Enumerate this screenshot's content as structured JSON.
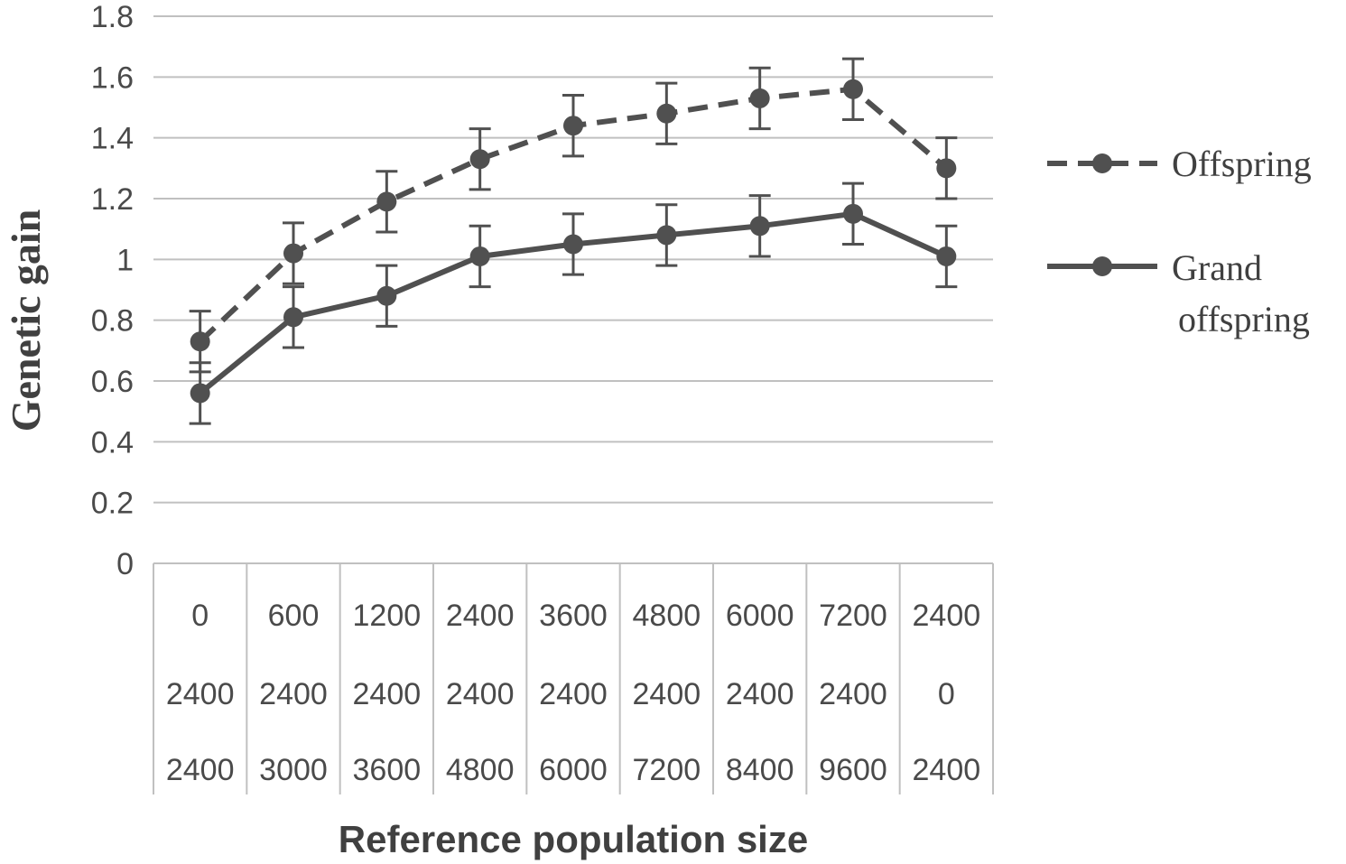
{
  "chart_data": {
    "type": "line",
    "title": "",
    "xlabel": "Reference population size",
    "ylabel": "Genetic gain",
    "ylim": [
      0,
      1.8
    ],
    "yticks": [
      "0",
      "0.2",
      "0.4",
      "0.6",
      "0.8",
      "1",
      "1.2",
      "1.4",
      "1.6",
      "1.8"
    ],
    "grid": true,
    "legend_position": "right",
    "categories": [
      [
        "0",
        "2400",
        "2400"
      ],
      [
        "600",
        "2400",
        "3000"
      ],
      [
        "1200",
        "2400",
        "3600"
      ],
      [
        "2400",
        "2400",
        "4800"
      ],
      [
        "3600",
        "2400",
        "6000"
      ],
      [
        "4800",
        "2400",
        "7200"
      ],
      [
        "6000",
        "2400",
        "8400"
      ],
      [
        "7200",
        "2400",
        "9600"
      ],
      [
        "2400",
        "0",
        "2400"
      ]
    ],
    "series": [
      {
        "name": "Offspring",
        "style": "dashed",
        "values": [
          0.73,
          1.02,
          1.19,
          1.33,
          1.44,
          1.48,
          1.53,
          1.56,
          1.3
        ],
        "error": [
          0.1,
          0.1,
          0.1,
          0.1,
          0.1,
          0.1,
          0.1,
          0.1,
          0.1
        ]
      },
      {
        "name_lines": [
          "Grand",
          "offspring"
        ],
        "style": "solid",
        "values": [
          0.56,
          0.81,
          0.88,
          1.01,
          1.05,
          1.08,
          1.11,
          1.15,
          1.01
        ],
        "error": [
          0.1,
          0.1,
          0.1,
          0.1,
          0.1,
          0.1,
          0.1,
          0.1,
          0.1
        ]
      }
    ],
    "colors": {
      "line": "#505050",
      "grid": "#c0c0c0",
      "text": "#4a4a4a"
    }
  }
}
